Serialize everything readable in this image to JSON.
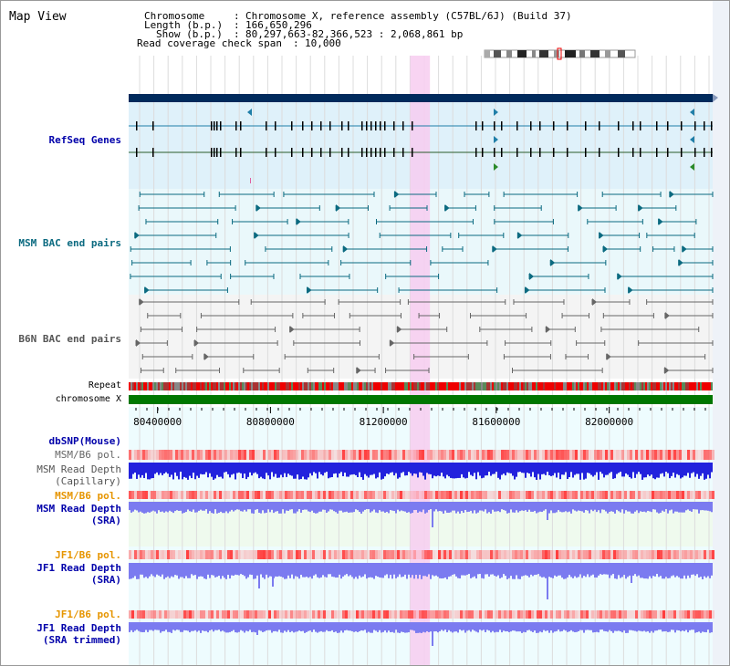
{
  "title": "Map View",
  "info": {
    "chromosome_key": "Chromosome",
    "chromosome_val": "Chromosome X, reference assembly (C57BL/6J) (Build 37)",
    "length_key": "Length (b.p.)",
    "length_val": "166,650,296",
    "show_key": "Show (b.p.)",
    "show_val": "80,297,663-82,366,523 : 2,068,861 bp",
    "span_key": "Read coverage check span",
    "span_val": "10,000"
  },
  "region": {
    "start": 80297663,
    "end": 82366523
  },
  "highlight": {
    "start": 81295000,
    "end": 81365000
  },
  "axis_ticks": [
    80400000,
    80800000,
    81200000,
    81600000,
    82000000
  ],
  "tracks": {
    "refseq": "RefSeq Genes",
    "msm_bac": "MSM BAC end pairs",
    "b6n_bac": "B6N BAC end pairs",
    "repeat": "Repeat",
    "chromosome": "chromosome X",
    "dbsnp": "dbSNP(Mouse)",
    "msm_pol1": "MSM/B6 pol.",
    "msm_depth_cap_1": "MSM Read Depth",
    "msm_depth_cap_2": "(Capillary)",
    "msm_pol2": "MSM/B6 pol.",
    "msm_depth_sra_1": "MSM Read Depth",
    "msm_depth_sra_2": "(SRA)",
    "jf1_pol1": "JF1/B6 pol.",
    "jf1_depth_sra_1": "JF1 Read Depth",
    "jf1_depth_sra_2": "(SRA)",
    "jf1_pol2": "JF1/B6 pol.",
    "jf1_depth_trim_1": "JF1 Read Depth",
    "jf1_depth_trim_2": "(SRA trimmed)"
  },
  "colors": {
    "navy": "#002a5c",
    "gene_blue": "#1f7ea8",
    "msm_bac": "#0b6a80",
    "b6n_bac": "#666666",
    "chrom_green": "#007700",
    "depth_blue": "#2222dd",
    "depth_light": "#7b7bf0",
    "pol_red": "#ff5a5a",
    "highlight": "#f7cdf0"
  }
}
